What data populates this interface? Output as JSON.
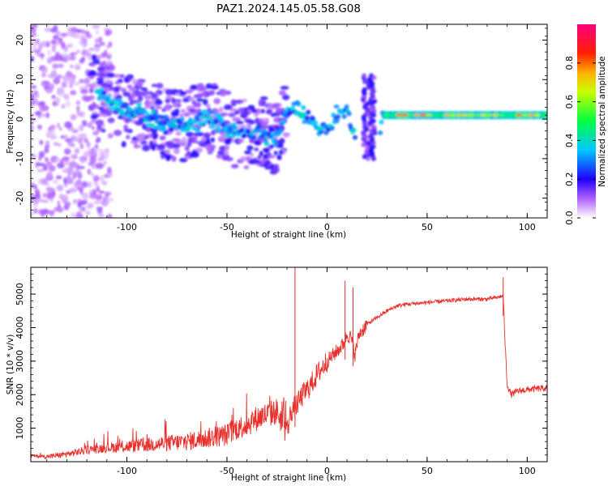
{
  "title": "PAZ1.2024.145.05.58.G08",
  "colors": {
    "snr_line": "#e8302c",
    "axis": "#000000",
    "colormap": [
      "#ffffff",
      "#a000ff",
      "#2000ff",
      "#00c8ff",
      "#00ff40",
      "#ffff00",
      "#ff2000",
      "#ff0080"
    ]
  },
  "chart_data": [
    {
      "type": "heatmap",
      "xlabel": "Height of straight line (km)",
      "ylabel": "Frequency (Hz)",
      "xlim": [
        -148,
        110
      ],
      "ylim": [
        -25,
        24
      ],
      "xticks": [
        -100,
        -50,
        0,
        50,
        100
      ],
      "yticks": [
        -20,
        -10,
        0,
        10,
        20
      ],
      "grid": false,
      "colorbar": {
        "label": "Normalized spectral amplitude",
        "range": [
          0,
          1
        ],
        "ticks": [
          0.0,
          0.2,
          0.4,
          0.6,
          0.8
        ],
        "tick_labels": [
          "0.0",
          "0.2",
          "0.4",
          "0.6",
          "0.8"
        ]
      },
      "ridge": [
        {
          "x": -112,
          "y": 6
        },
        {
          "x": -100,
          "y": 2
        },
        {
          "x": -90,
          "y": 1
        },
        {
          "x": -80,
          "y": -1
        },
        {
          "x": -70,
          "y": -2
        },
        {
          "x": -60,
          "y": 1
        },
        {
          "x": -50,
          "y": -2
        },
        {
          "x": -42,
          "y": -4
        },
        {
          "x": -35,
          "y": -3
        },
        {
          "x": -25,
          "y": -5
        },
        {
          "x": -20,
          "y": 2
        },
        {
          "x": -15,
          "y": 3
        },
        {
          "x": -10,
          "y": 1
        },
        {
          "x": -5,
          "y": -2
        },
        {
          "x": 0,
          "y": -3
        },
        {
          "x": 5,
          "y": 1
        },
        {
          "x": 10,
          "y": 2
        },
        {
          "x": 15,
          "y": -5
        },
        {
          "x": 18,
          "y": -10
        },
        {
          "x": 20,
          "y": 10
        },
        {
          "x": 23,
          "y": -10
        },
        {
          "x": 28,
          "y": 1
        },
        {
          "x": 50,
          "y": 1
        },
        {
          "x": 80,
          "y": 1
        },
        {
          "x": 110,
          "y": 1
        }
      ]
    },
    {
      "type": "line",
      "xlabel": "Height of straight line (km)",
      "ylabel": "SNR (10 * v/v)",
      "xlim": [
        -148,
        110
      ],
      "ylim": [
        0,
        5800
      ],
      "xticks": [
        -100,
        -50,
        0,
        50,
        100
      ],
      "yticks": [
        1000,
        2000,
        3000,
        4000,
        5000
      ],
      "grid": false,
      "series": [
        {
          "x": [
            -148,
            -140,
            -130,
            -120,
            -110,
            -100,
            -90,
            -80,
            -70,
            -60,
            -50,
            -45,
            -40,
            -35,
            -30,
            -25,
            -20,
            -18,
            -15,
            -12,
            -8,
            -5,
            0,
            5,
            8,
            10,
            12,
            14,
            16,
            20,
            25,
            30,
            35,
            40,
            50,
            60,
            70,
            80,
            85,
            88,
            89,
            90,
            92,
            95,
            100,
            110
          ],
          "y": [
            180,
            150,
            220,
            350,
            420,
            450,
            500,
            550,
            600,
            700,
            800,
            1000,
            1100,
            1300,
            1400,
            1500,
            900,
            1500,
            1700,
            2000,
            2300,
            2600,
            3000,
            3300,
            3500,
            3800,
            3700,
            3200,
            3800,
            4100,
            4300,
            4500,
            4650,
            4700,
            4750,
            4800,
            4850,
            4850,
            4900,
            4950,
            3500,
            2300,
            2000,
            2100,
            2150,
            2200
          ]
        }
      ],
      "annotations": [
        {
          "x": -16,
          "y": 5800
        },
        {
          "x": 9,
          "y": 5400
        },
        {
          "x": 13,
          "y": 5200
        },
        {
          "x": 88,
          "y": 5500
        }
      ]
    }
  ]
}
